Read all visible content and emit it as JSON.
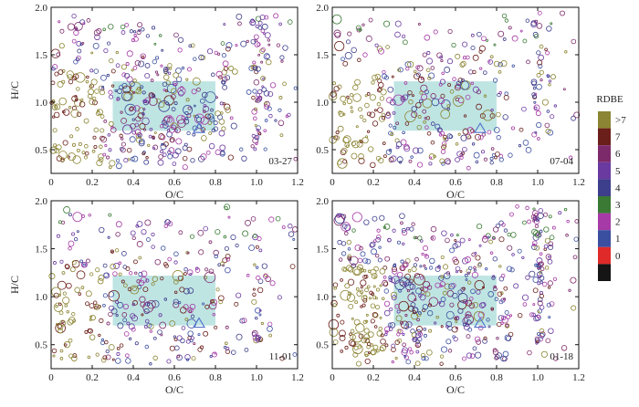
{
  "chart_data": {
    "type": "scatter",
    "xlabel": "O/C",
    "ylabel": "H/C",
    "xlim": [
      0,
      1.2
    ],
    "ylim": [
      0.25,
      2.0
    ],
    "xticks": [
      "0",
      "0.2",
      "0.4",
      "0.6",
      "0.8",
      "1.0",
      "1.2"
    ],
    "yticks": [
      "0.5",
      "1.0",
      "1.5",
      "2.0"
    ],
    "highlight_region": {
      "x": [
        0.3,
        0.8
      ],
      "y": [
        0.7,
        1.22
      ],
      "color": "#a9dcd9"
    },
    "panels": [
      {
        "label": "03-27",
        "density": 1.0
      },
      {
        "label": "07-04",
        "density": 0.75
      },
      {
        "label": "11-01",
        "density": 0.7
      },
      {
        "label": "01-18",
        "density": 1.15
      }
    ],
    "legend": {
      "title": "RDBE",
      "entries": [
        {
          "label": ">7",
          "color": "#8c8533"
        },
        {
          "label": "7",
          "color": "#6b1f1a"
        },
        {
          "label": "6",
          "color": "#7d2a6b"
        },
        {
          "label": "5",
          "color": "#6a3aa0"
        },
        {
          "label": "4",
          "color": "#3d3e8c"
        },
        {
          "label": "3",
          "color": "#3a7a34"
        },
        {
          "label": "2",
          "color": "#a63aa6"
        },
        {
          "label": "1",
          "color": "#3b4fa0"
        },
        {
          "label": "0",
          "color": "#e02a2a"
        },
        {
          "label": "",
          "color": "#151515"
        }
      ]
    }
  }
}
